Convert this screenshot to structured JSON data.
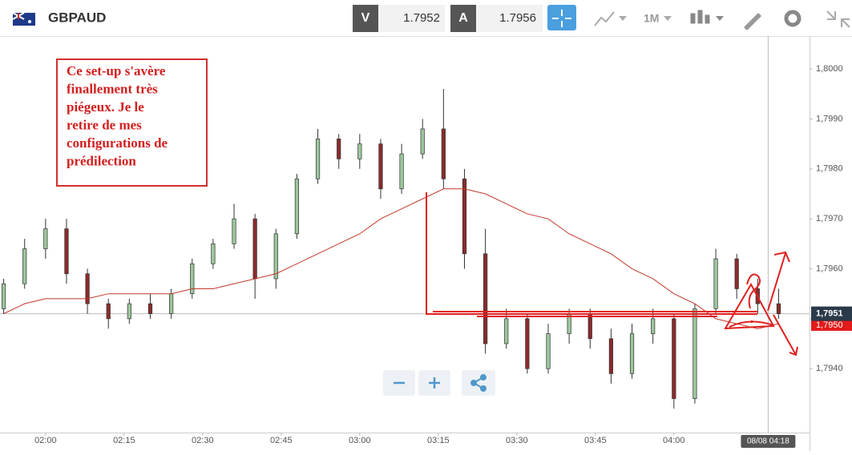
{
  "header": {
    "symbol": "GBPAUD",
    "bid_label": "V",
    "bid": 1.7952,
    "ask_label": "A",
    "ask": 1.7956,
    "timeframe": "1M"
  },
  "chart_data": {
    "type": "candlestick",
    "x": [
      112,
      116,
      120,
      124,
      128,
      132,
      136,
      140,
      144,
      148,
      152,
      156,
      160,
      164,
      168,
      172,
      176,
      180,
      184,
      188,
      192,
      196,
      200,
      204,
      208,
      212,
      216,
      220,
      224,
      228,
      232,
      236,
      240,
      244,
      248,
      252,
      256,
      260
    ],
    "open": [
      1.7952,
      1.7957,
      1.7964,
      1.7968,
      1.7959,
      1.7953,
      1.795,
      1.7953,
      1.7951,
      1.7955,
      1.7961,
      1.7965,
      1.797,
      1.7958,
      1.7967,
      1.7978,
      1.7986,
      1.7982,
      1.7985,
      1.7976,
      1.7983,
      1.7988,
      1.7978,
      1.7963,
      1.7945,
      1.795,
      1.794,
      1.7947,
      1.7951,
      1.7946,
      1.7939,
      1.7947,
      1.795,
      1.7934,
      1.7952,
      1.7962,
      1.7956,
      1.7953
    ],
    "high": [
      1.7958,
      1.7966,
      1.797,
      1.797,
      1.796,
      1.7954,
      1.7954,
      1.7955,
      1.7956,
      1.7962,
      1.7966,
      1.7973,
      1.7971,
      1.7968,
      1.7979,
      1.7988,
      1.7987,
      1.7987,
      1.7986,
      1.7985,
      1.799,
      1.7996,
      1.798,
      1.7968,
      1.7952,
      1.7951,
      1.7949,
      1.7952,
      1.7952,
      1.7948,
      1.7949,
      1.7952,
      1.7951,
      1.7953,
      1.7964,
      1.7963,
      1.7958,
      1.7956
    ],
    "low": [
      1.7951,
      1.7956,
      1.7962,
      1.7957,
      1.7951,
      1.7948,
      1.7949,
      1.795,
      1.795,
      1.7954,
      1.796,
      1.7964,
      1.7954,
      1.7956,
      1.7966,
      1.7977,
      1.798,
      1.798,
      1.7974,
      1.7975,
      1.7982,
      1.7976,
      1.796,
      1.7943,
      1.7944,
      1.7939,
      1.7939,
      1.7945,
      1.7944,
      1.7937,
      1.7938,
      1.7945,
      1.7932,
      1.7933,
      1.7951,
      1.7954,
      1.7951,
      1.795
    ],
    "close": [
      1.7957,
      1.7964,
      1.7968,
      1.7959,
      1.7953,
      1.795,
      1.7953,
      1.7951,
      1.7955,
      1.7961,
      1.7965,
      1.797,
      1.7958,
      1.7967,
      1.7978,
      1.7986,
      1.7982,
      1.7985,
      1.7976,
      1.7983,
      1.7988,
      1.7978,
      1.7963,
      1.7945,
      1.795,
      1.794,
      1.7947,
      1.7951,
      1.7946,
      1.7939,
      1.7947,
      1.795,
      1.7934,
      1.7952,
      1.7962,
      1.7956,
      1.7953,
      1.7951
    ],
    "up_color": "#9cc79c",
    "down_color": "#8b2b2b",
    "moving_average": {
      "color": "#c0392b",
      "values": [
        1.7951,
        1.7953,
        1.7954,
        1.7954,
        1.7954,
        1.7955,
        1.7955,
        1.7955,
        1.7955,
        1.7956,
        1.7956,
        1.7957,
        1.7958,
        1.7959,
        1.7961,
        1.7963,
        1.7965,
        1.7967,
        1.797,
        1.7972,
        1.7974,
        1.7976,
        1.7976,
        1.7975,
        1.7973,
        1.7971,
        1.797,
        1.7967,
        1.7965,
        1.7963,
        1.796,
        1.7958,
        1.7955,
        1.7953,
        1.795,
        1.7949,
        1.7948,
        1.7949
      ]
    },
    "xlim": [
      111.3,
      265.9
    ],
    "xticks": [
      {
        "value": 120,
        "label": "02:00"
      },
      {
        "value": 135,
        "label": "02:15"
      },
      {
        "value": 150,
        "label": "02:30"
      },
      {
        "value": 165,
        "label": "02:45"
      },
      {
        "value": 180,
        "label": "03:00"
      },
      {
        "value": 195,
        "label": "03:15"
      },
      {
        "value": 210,
        "label": "03:30"
      },
      {
        "value": 225,
        "label": "03:45"
      },
      {
        "value": 240,
        "label": "04:00"
      }
    ],
    "ylim": [
      1.79272,
      1.80066
    ],
    "yticks": [
      {
        "value": 1.794,
        "label": "1,7940"
      },
      {
        "value": 1.795,
        "label": "1,7950"
      },
      {
        "value": 1.796,
        "label": "1,7960"
      },
      {
        "value": 1.797,
        "label": "1,7970"
      },
      {
        "value": 1.798,
        "label": "1,7980"
      },
      {
        "value": 1.799,
        "label": "1,7990"
      },
      {
        "value": 1.8,
        "label": "1,8000"
      }
    ],
    "current_price": {
      "value": 1.7951,
      "label": "1,7951"
    },
    "average_price": {
      "value": 1.79495,
      "label": "1,7950"
    },
    "crosshair": {
      "value": 258,
      "label": "08/08 04:18"
    },
    "annotation_lines": [
      "Ce set-up s'avère",
      "finallement très",
      "piégeux. Je le",
      "retire de mes",
      "configurations de",
      "prédilection"
    ]
  }
}
